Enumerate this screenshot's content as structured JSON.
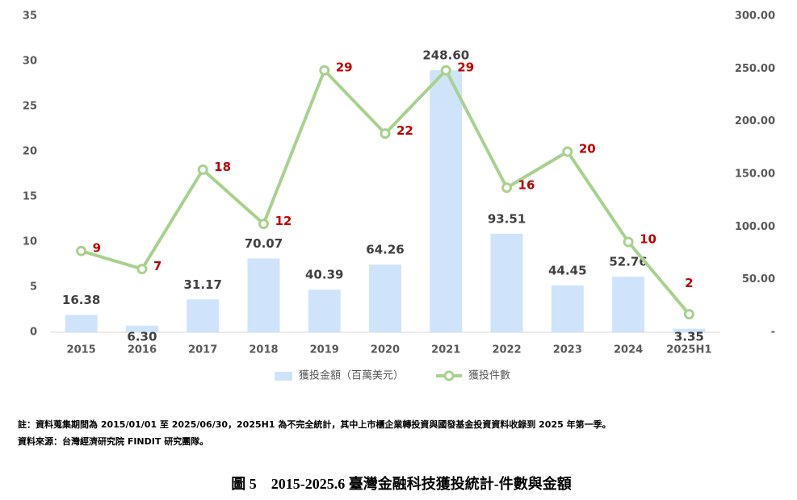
{
  "chart_data": {
    "type": "bar",
    "categories": [
      "2015",
      "2016",
      "2017",
      "2018",
      "2019",
      "2020",
      "2021",
      "2022",
      "2023",
      "2024",
      "2025H1"
    ],
    "series": [
      {
        "name": "獲投金額（百萬美元）",
        "type": "bar",
        "axis": "y2",
        "color": "#cfe4fa",
        "values": [
          16.38,
          6.3,
          31.17,
          70.07,
          40.39,
          64.26,
          248.6,
          93.51,
          44.45,
          52.76,
          3.35
        ],
        "value_labels": [
          "16.38",
          "6.30",
          "31.17",
          "70.07",
          "40.39",
          "64.26",
          "248.60",
          "93.51",
          "44.45",
          "52.76",
          "3.35"
        ]
      },
      {
        "name": "獲投件數",
        "type": "line",
        "color": "#a9d18e",
        "values": [
          9,
          7,
          18,
          12,
          29,
          22,
          29,
          16,
          20,
          10,
          2
        ]
      }
    ],
    "ylim": [
      0,
      35
    ],
    "yticks": [
      0,
      5,
      10,
      15,
      20,
      25,
      30,
      35
    ],
    "y2lim": [
      0,
      300
    ],
    "y2ticks": [
      {
        "value": 0,
        "label": "-"
      },
      {
        "value": 50,
        "label": "50.00"
      },
      {
        "value": 100,
        "label": "100.00"
      },
      {
        "value": 150,
        "label": "150.00"
      },
      {
        "value": 200,
        "label": "200.00"
      },
      {
        "value": 250,
        "label": "250.00"
      },
      {
        "value": 300,
        "label": "300.00"
      }
    ],
    "legend": "bottom",
    "notes": [
      "註：資料蒐集期間為 2015/01/01 至 2025/06/30，2025H1 為不完全統計，其中上市櫃企業轉投資與國發基金投資資料收錄到 2025 年第一季。",
      "資料來源：台灣經濟研究院 FINDIT 研究團隊。"
    ],
    "caption": "圖 5　2015-2025.6 臺灣金融科技獲投統計-件數與金額"
  }
}
